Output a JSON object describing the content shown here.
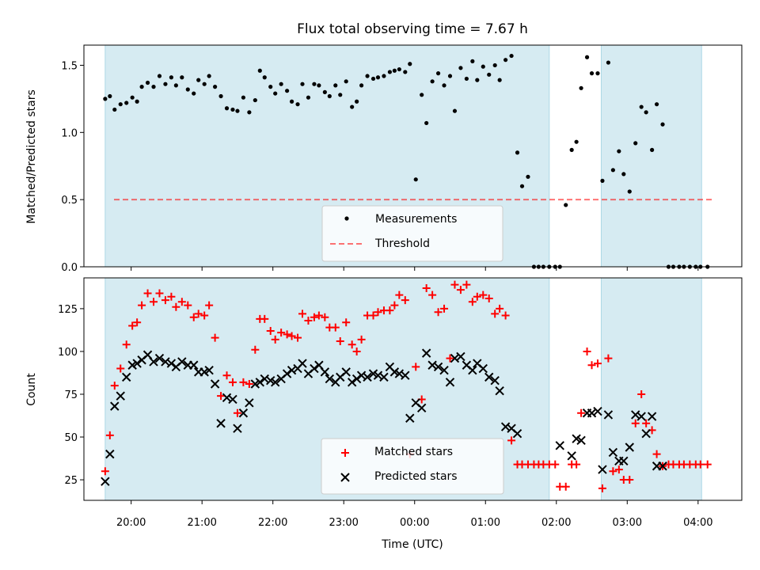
{
  "chart_data": {
    "type": "scatter",
    "title": "Flux total observing time = 7.67 h",
    "xlabel": "Time (UTC)",
    "x_ticks": [
      "20:00",
      "21:00",
      "22:00",
      "23:00",
      "00:00",
      "01:00",
      "02:00",
      "03:00",
      "04:00"
    ],
    "x_range": [
      "19:20",
      "04:37"
    ],
    "observing_windows": [
      [
        "19:38",
        "01:54"
      ],
      [
        "02:38",
        "04:03"
      ]
    ],
    "colors": {
      "window": "#add8e6",
      "measurement": "#000000",
      "threshold": "#ff0000",
      "matched": "#ff0000",
      "predicted": "#000000"
    },
    "panels": [
      {
        "ylabel": "Matched/Predicted stars",
        "ylim": [
          0,
          1.65
        ],
        "yticks": [
          "0.0",
          "0.5",
          "1.0",
          "1.5"
        ],
        "threshold": 0.5,
        "legend": [
          "Measurements",
          "Threshold"
        ],
        "legend_position": "lower-center",
        "series": [
          {
            "name": "Measurements",
            "marker": "dot",
            "x": [
              "19:38",
              "19:42",
              "19:46",
              "19:51",
              "19:56",
              "20:01",
              "20:05",
              "20:09",
              "20:14",
              "20:19",
              "20:24",
              "20:29",
              "20:34",
              "20:38",
              "20:43",
              "20:48",
              "20:53",
              "20:57",
              "21:02",
              "21:06",
              "21:11",
              "21:16",
              "21:21",
              "21:26",
              "21:30",
              "21:35",
              "21:40",
              "21:45",
              "21:49",
              "21:53",
              "21:58",
              "22:02",
              "22:07",
              "22:12",
              "22:16",
              "22:21",
              "22:25",
              "22:30",
              "22:35",
              "22:39",
              "22:44",
              "22:48",
              "22:53",
              "22:57",
              "23:02",
              "23:07",
              "23:11",
              "23:15",
              "23:20",
              "23:25",
              "23:29",
              "23:34",
              "23:39",
              "23:43",
              "23:47",
              "23:52",
              "23:56",
              "00:01",
              "00:06",
              "00:10",
              "00:15",
              "00:20",
              "00:25",
              "00:30",
              "00:34",
              "00:39",
              "00:44",
              "00:49",
              "00:53",
              "00:58",
              "01:03",
              "01:08",
              "01:12",
              "01:17",
              "01:22",
              "01:27",
              "01:31",
              "01:36",
              "01:41",
              "01:45",
              "01:49",
              "01:54",
              "01:59",
              "02:03",
              "02:08",
              "02:13",
              "02:17",
              "02:21",
              "02:26",
              "02:30",
              "02:35",
              "02:39",
              "02:44",
              "02:48",
              "02:53",
              "02:57",
              "03:02",
              "03:07",
              "03:12",
              "03:16",
              "03:21",
              "03:25",
              "03:30",
              "03:35",
              "03:39",
              "03:44",
              "03:48",
              "03:53",
              "03:58",
              "04:02",
              "04:08"
            ],
            "y": [
              1.25,
              1.27,
              1.17,
              1.21,
              1.22,
              1.26,
              1.23,
              1.34,
              1.37,
              1.34,
              1.42,
              1.36,
              1.41,
              1.35,
              1.41,
              1.32,
              1.29,
              1.39,
              1.36,
              1.42,
              1.34,
              1.27,
              1.18,
              1.17,
              1.16,
              1.26,
              1.15,
              1.24,
              1.46,
              1.41,
              1.34,
              1.29,
              1.36,
              1.31,
              1.23,
              1.21,
              1.36,
              1.26,
              1.36,
              1.35,
              1.3,
              1.27,
              1.35,
              1.28,
              1.38,
              1.19,
              1.23,
              1.35,
              1.42,
              1.4,
              1.41,
              1.42,
              1.45,
              1.46,
              1.47,
              1.45,
              1.51,
              0.65,
              1.28,
              1.07,
              1.38,
              1.44,
              1.35,
              1.42,
              1.16,
              1.48,
              1.4,
              1.53,
              1.39,
              1.49,
              1.43,
              1.5,
              1.39,
              1.54,
              1.57,
              0.85,
              0.6,
              0.67,
              0.0,
              0.0,
              0.0,
              0.0,
              0.0,
              0.0,
              0.46,
              0.87,
              0.93,
              1.33,
              1.56,
              1.44,
              1.44,
              0.64,
              1.52,
              0.72,
              0.86,
              0.69,
              0.56,
              0.92,
              1.19,
              1.15,
              0.87,
              1.21,
              1.06,
              0.0,
              0.0,
              0.0,
              0.0,
              0.0,
              0.0,
              0.0,
              0.0
            ],
            "x_visible_count": 103
          }
        ]
      },
      {
        "ylabel": "Count",
        "ylim": [
          13,
          143
        ],
        "yticks": [
          "25",
          "50",
          "75",
          "100",
          "125"
        ],
        "legend": [
          "Matched stars",
          "Predicted stars"
        ],
        "legend_position": "lower-center",
        "series": [
          {
            "name": "Matched stars",
            "marker": "plus",
            "x": [
              "19:38",
              "19:42",
              "19:46",
              "19:51",
              "19:56",
              "20:01",
              "20:05",
              "20:09",
              "20:14",
              "20:19",
              "20:24",
              "20:29",
              "20:34",
              "20:38",
              "20:43",
              "20:48",
              "20:53",
              "20:57",
              "21:02",
              "21:06",
              "21:11",
              "21:16",
              "21:21",
              "21:26",
              "21:30",
              "21:35",
              "21:40",
              "21:45",
              "21:49",
              "21:53",
              "21:58",
              "22:02",
              "22:07",
              "22:12",
              "22:16",
              "22:21",
              "22:25",
              "22:30",
              "22:35",
              "22:39",
              "22:44",
              "22:48",
              "22:53",
              "22:57",
              "23:02",
              "23:07",
              "23:11",
              "23:15",
              "23:20",
              "23:25",
              "23:29",
              "23:34",
              "23:39",
              "23:43",
              "23:47",
              "23:52",
              "23:56",
              "00:01",
              "00:06",
              "00:10",
              "00:15",
              "00:20",
              "00:25",
              "00:30",
              "00:34",
              "00:39",
              "00:44",
              "00:49",
              "00:53",
              "00:58",
              "01:03",
              "01:08",
              "01:12",
              "01:17",
              "01:22",
              "01:27",
              "01:31",
              "01:36",
              "01:41",
              "01:45",
              "01:49",
              "01:54",
              "01:59",
              "02:03",
              "02:08",
              "02:13",
              "02:17",
              "02:21",
              "02:26",
              "02:30",
              "02:35",
              "02:39",
              "02:44",
              "02:48",
              "02:53",
              "02:57",
              "03:02",
              "03:07",
              "03:12",
              "03:16",
              "03:21",
              "03:25",
              "03:30",
              "03:35",
              "03:39",
              "03:44",
              "03:48",
              "03:53",
              "03:58",
              "04:02",
              "04:08"
            ],
            "y": [
              30,
              51,
              80,
              90,
              104,
              115,
              117,
              127,
              134,
              129,
              134,
              130,
              132,
              126,
              129,
              127,
              120,
              122,
              121,
              127,
              108,
              74,
              86,
              82,
              64,
              82,
              81,
              101,
              119,
              119,
              112,
              107,
              111,
              110,
              109,
              108,
              122,
              118,
              120,
              121,
              120,
              114,
              114,
              106,
              117,
              104,
              100,
              107,
              121,
              121,
              123,
              124,
              124,
              127,
              133,
              130,
              40,
              91,
              72,
              137,
              133,
              123,
              125,
              96,
              139,
              136,
              139,
              129,
              132,
              133,
              131,
              122,
              125,
              121,
              48,
              34,
              34,
              34,
              34,
              34,
              34,
              34,
              34,
              21,
              21,
              34,
              34,
              64,
              100,
              92,
              93,
              20,
              96,
              30,
              31,
              25,
              25,
              58,
              75,
              58,
              54,
              40,
              33,
              34,
              34,
              34,
              34,
              34,
              34,
              34,
              34
            ]
          },
          {
            "name": "Predicted stars",
            "marker": "x",
            "x": [
              "19:38",
              "19:42",
              "19:46",
              "19:51",
              "19:56",
              "20:01",
              "20:05",
              "20:09",
              "20:14",
              "20:19",
              "20:24",
              "20:29",
              "20:34",
              "20:38",
              "20:43",
              "20:48",
              "20:53",
              "20:57",
              "21:02",
              "21:06",
              "21:11",
              "21:16",
              "21:21",
              "21:26",
              "21:30",
              "21:35",
              "21:40",
              "21:45",
              "21:49",
              "21:53",
              "21:58",
              "22:02",
              "22:07",
              "22:12",
              "22:16",
              "22:21",
              "22:25",
              "22:30",
              "22:35",
              "22:39",
              "22:44",
              "22:48",
              "22:53",
              "22:57",
              "23:02",
              "23:07",
              "23:11",
              "23:15",
              "23:20",
              "23:25",
              "23:29",
              "23:34",
              "23:39",
              "23:43",
              "23:47",
              "23:52",
              "23:56",
              "00:01",
              "00:06",
              "00:10",
              "00:15",
              "00:20",
              "00:25",
              "00:30",
              "00:34",
              "00:39",
              "00:44",
              "00:49",
              "00:53",
              "00:58",
              "01:03",
              "01:08",
              "01:12",
              "01:17",
              "01:22",
              "01:27",
              "01:31",
              "01:36",
              "01:41",
              "01:45",
              "01:49",
              "01:54",
              "01:59",
              "02:03",
              "02:08",
              "02:13",
              "02:17",
              "02:21",
              "02:26",
              "02:30",
              "02:35",
              "02:39",
              "02:44",
              "02:48",
              "02:53",
              "02:57",
              "03:02",
              "03:07",
              "03:12",
              "03:16",
              "03:21",
              "03:25",
              "03:30",
              "03:35",
              "03:39",
              "03:44",
              "03:48",
              "03:53",
              "03:58",
              "04:02",
              "04:08"
            ],
            "y": [
              24,
              40,
              68,
              74,
              85,
              92,
              93,
              95,
              98,
              94,
              96,
              94,
              93,
              91,
              94,
              92,
              92,
              88,
              88,
              89,
              81,
              58,
              73,
              72,
              55,
              64,
              70,
              81,
              82,
              84,
              83,
              82,
              84,
              87,
              89,
              90,
              93,
              87,
              90,
              92,
              88,
              84,
              82,
              85,
              88,
              82,
              84,
              86,
              85,
              87,
              86,
              85,
              91,
              88,
              87,
              86,
              61,
              70,
              67,
              99,
              92,
              91,
              89,
              82,
              96,
              97,
              92,
              89,
              93,
              90,
              85,
              83,
              77,
              56,
              55,
              52,
              null,
              null,
              null,
              null,
              null,
              null,
              null,
              45,
              null,
              39,
              49,
              48,
              64,
              64,
              65,
              31,
              63,
              41,
              36,
              36,
              44,
              63,
              62,
              52,
              62,
              33,
              33,
              null,
              null,
              null,
              null,
              null,
              null,
              null,
              null
            ]
          }
        ]
      }
    ]
  }
}
